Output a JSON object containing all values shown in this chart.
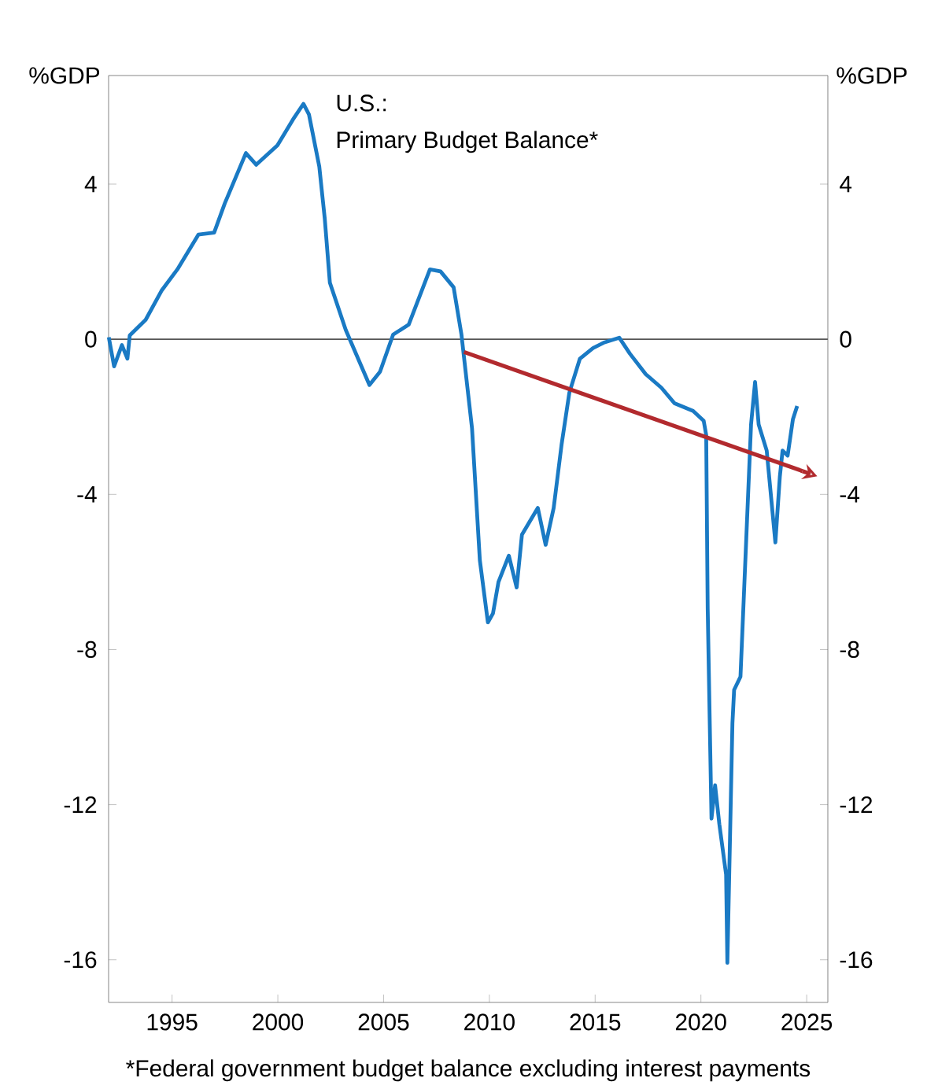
{
  "chart_data": {
    "type": "line",
    "title": "U.S.:",
    "subtitle": "Primary Budget Balance*",
    "ylabel": "%GDP",
    "y2label": "%GDP",
    "annotations": [
      "*Federal government budget balance excluding interest payments"
    ],
    "xlim": [
      1992,
      2026
    ],
    "xticks": [
      1995,
      2000,
      2005,
      2010,
      2015,
      2020,
      2025
    ],
    "ylim": [
      -17.1,
      6.8
    ],
    "yticks": [
      -16,
      -12,
      -8,
      -4,
      0,
      4
    ],
    "y2lim": [
      -17.1,
      6.8
    ],
    "y2ticks": [
      -16,
      -12,
      -8,
      -4,
      0,
      4
    ],
    "ref_lines": [
      {
        "axis": "y",
        "value": 0,
        "color": "#555555"
      }
    ],
    "series": [
      {
        "color": "#1a7ac4",
        "x": [
          1992.01,
          1992.26,
          1992.63,
          1992.89,
          1993.0,
          1993.75,
          1994.5,
          1995.25,
          1996.25,
          1996.99,
          1997.49,
          1998.49,
          1998.98,
          1999.98,
          2000.72,
          2001.21,
          2001.47,
          2001.96,
          2002.22,
          2002.46,
          2003.21,
          2004.33,
          2004.83,
          2005.45,
          2006.19,
          2007.19,
          2007.69,
          2008.31,
          2008.68,
          2009.18,
          2009.55,
          2009.93,
          2010.17,
          2010.43,
          2010.92,
          2011.29,
          2011.54,
          2012.29,
          2012.66,
          2013.04,
          2013.41,
          2013.78,
          2014.28,
          2014.9,
          2015.4,
          2016.14,
          2016.64,
          2017.39,
          2018.13,
          2018.75,
          2019.63,
          2020.13,
          2020.25,
          2020.32,
          2020.5,
          2020.67,
          2020.87,
          2021.19,
          2021.25,
          2021.49,
          2021.57,
          2021.87,
          2022.37,
          2022.56,
          2022.73,
          2023.11,
          2023.52,
          2023.73,
          2023.86,
          2024.1,
          2024.35,
          2024.55
        ],
        "values": [
          0.05,
          -0.7,
          -0.15,
          -0.5,
          0.1,
          0.5,
          1.25,
          1.8,
          2.7,
          2.75,
          3.5,
          4.8,
          4.5,
          5.0,
          5.67,
          6.07,
          5.8,
          4.45,
          3.1,
          1.46,
          0.24,
          -1.18,
          -0.84,
          0.12,
          0.38,
          1.8,
          1.75,
          1.34,
          0.12,
          -2.3,
          -5.7,
          -7.3,
          -7.07,
          -6.26,
          -5.58,
          -6.4,
          -5.04,
          -4.35,
          -5.3,
          -4.35,
          -2.73,
          -1.38,
          -0.5,
          -0.23,
          -0.09,
          0.04,
          -0.37,
          -0.9,
          -1.25,
          -1.65,
          -1.85,
          -2.1,
          -2.47,
          -6.94,
          -12.36,
          -11.5,
          -12.5,
          -13.8,
          -16.08,
          -9.9,
          -9.04,
          -8.7,
          -2.2,
          -1.1,
          -2.2,
          -2.87,
          -5.24,
          -3.55,
          -2.87,
          -3.0,
          -2.06,
          -1.72
        ]
      },
      {
        "type": "line",
        "color": "#b22a2e",
        "x": [
          2008.8,
          2024.8
        ],
        "values": [
          -0.33,
          -3.4
        ]
      }
    ]
  }
}
